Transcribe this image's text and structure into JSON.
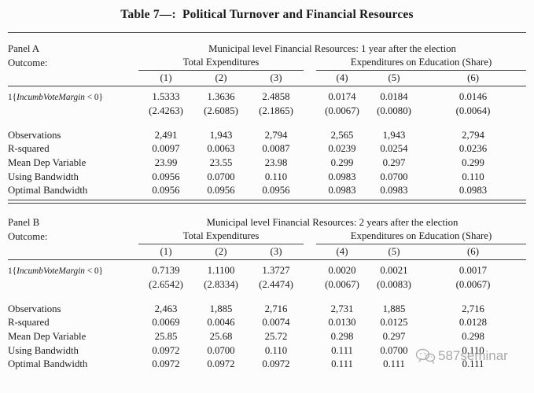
{
  "title": "Table 7—:  Political Turnover and Financial Resources",
  "watermark": {
    "icon": "wechat-icon",
    "text": "587seminar"
  },
  "panels": [
    {
      "name": "Panel A",
      "outcome_label": "Outcome:",
      "span_header": "Municipal level Financial Resources: 1 year after the election",
      "group1": "Total Expenditures",
      "group2": "Expenditures on Education (Share)",
      "cols": [
        "(1)",
        "(2)",
        "(3)",
        "(4)",
        "(5)",
        "(6)"
      ],
      "coef_label": {
        "pre": "1{",
        "var": "IncumbVoteMargin",
        "post": " < 0}"
      },
      "coef": [
        "1.5333",
        "1.3636",
        "2.4858",
        "0.0174",
        "0.0184",
        "0.0146"
      ],
      "se": [
        "(2.4263)",
        "(2.6085)",
        "(2.1865)",
        "(0.0067)",
        "(0.0080)",
        "(0.0064)"
      ],
      "stats": [
        {
          "label": "Observations",
          "values": [
            "2,491",
            "1,943",
            "2,794",
            "2,565",
            "1,943",
            "2,794"
          ]
        },
        {
          "label": "R-squared",
          "values": [
            "0.0097",
            "0.0063",
            "0.0087",
            "0.0239",
            "0.0254",
            "0.0236"
          ]
        },
        {
          "label": "Mean Dep Variable",
          "values": [
            "23.99",
            "23.55",
            "23.98",
            "0.299",
            "0.297",
            "0.299"
          ]
        },
        {
          "label": "Using Bandwidth",
          "values": [
            "0.0956",
            "0.0700",
            "0.110",
            "0.0983",
            "0.0700",
            "0.110"
          ]
        },
        {
          "label": "Optimal Bandwidth",
          "values": [
            "0.0956",
            "0.0956",
            "0.0956",
            "0.0983",
            "0.0983",
            "0.0983"
          ]
        }
      ]
    },
    {
      "name": "Panel B",
      "outcome_label": "Outcome:",
      "span_header": "Municipal level Financial Resources: 2 years after the election",
      "group1": "Total Expenditures",
      "group2": "Expenditures on Education (Share)",
      "cols": [
        "(1)",
        "(2)",
        "(3)",
        "(4)",
        "(5)",
        "(6)"
      ],
      "coef_label": {
        "pre": "1{",
        "var": "IncumbVoteMargin",
        "post": " < 0}"
      },
      "coef": [
        "0.7139",
        "1.1100",
        "1.3727",
        "0.0020",
        "0.0021",
        "0.0017"
      ],
      "se": [
        "(2.6542)",
        "(2.8334)",
        "(2.4474)",
        "(0.0067)",
        "(0.0083)",
        "(0.0067)"
      ],
      "stats": [
        {
          "label": "Observations",
          "values": [
            "2,463",
            "1,885",
            "2,716",
            "2,731",
            "1,885",
            "2,716"
          ]
        },
        {
          "label": "R-squared",
          "values": [
            "0.0069",
            "0.0046",
            "0.0074",
            "0.0130",
            "0.0125",
            "0.0128"
          ]
        },
        {
          "label": "Mean Dep Variable",
          "values": [
            "25.85",
            "25.68",
            "25.72",
            "0.298",
            "0.297",
            "0.298"
          ]
        },
        {
          "label": "Using Bandwidth",
          "values": [
            "0.0972",
            "0.0700",
            "0.110",
            "0.111",
            "0.0700",
            "0.110"
          ]
        },
        {
          "label": "Optimal Bandwidth",
          "values": [
            "0.0972",
            "0.0972",
            "0.0972",
            "0.111",
            "0.111",
            "0.111"
          ]
        }
      ]
    }
  ]
}
